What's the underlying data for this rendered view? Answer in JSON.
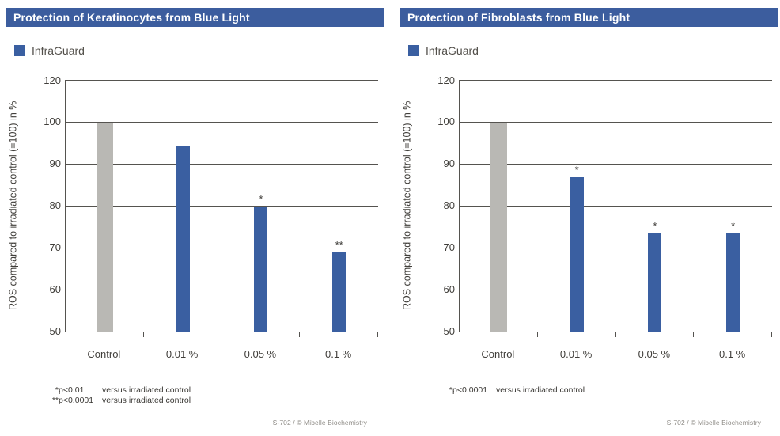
{
  "colors": {
    "page_bg": "#ffffff",
    "title_bg": "#3c5d9e",
    "title_text": "#ffffff",
    "bar_blue": "#3a5fa1",
    "bar_gray": "#b9b8b4",
    "grid": "#55534f",
    "text": "#403e3a",
    "legend_text": "#524f4a",
    "footnote_text": "#3a3834",
    "caption_text": "#8f8c87"
  },
  "chart_data": [
    {
      "type": "bar",
      "title": "Protection of Keratinocytes from Blue Light",
      "legend": [
        {
          "label": "InfraGuard",
          "color": "#3a5fa1"
        }
      ],
      "legend_position": "top-left",
      "ylabel": "ROS compared to irradiated control (=100) in %",
      "xlabel": "",
      "ylim": [
        50,
        120
      ],
      "y_ticks": [
        "120",
        "100",
        "90",
        "80",
        "70",
        "60",
        "50"
      ],
      "axis_note": "y-axis compressed above 100: the 120-to-100 span equals one 10-unit gridline gap",
      "grid": true,
      "categories": [
        "Control",
        "0.01 %",
        "0.05 %",
        "0.1 %"
      ],
      "values": [
        100,
        94.5,
        80,
        69
      ],
      "bar_colors": [
        "#b9b8b4",
        "#3a5fa1",
        "#3a5fa1",
        "#3a5fa1"
      ],
      "significance": [
        "",
        "",
        "*",
        "**"
      ],
      "footnotes": [
        {
          "marker": "*",
          "p": "p<0.01",
          "text": "versus irradiated control"
        },
        {
          "marker": "**",
          "p": "p<0.0001",
          "text": "versus irradiated control"
        }
      ],
      "caption": "S-702 / © Mibelle Biochemistry"
    },
    {
      "type": "bar",
      "title": "Protection of Fibroblasts from Blue Light",
      "legend": [
        {
          "label": "InfraGuard",
          "color": "#3a5fa1"
        }
      ],
      "legend_position": "top-left",
      "ylabel": "ROS compared to irradiated control (=100) in %",
      "xlabel": "",
      "ylim": [
        50,
        120
      ],
      "y_ticks": [
        "120",
        "100",
        "90",
        "80",
        "70",
        "60",
        "50"
      ],
      "axis_note": "y-axis compressed above 100: the 120-to-100 span equals one 10-unit gridline gap",
      "grid": true,
      "categories": [
        "Control",
        "0.01 %",
        "0.05 %",
        "0.1 %"
      ],
      "values": [
        100,
        87,
        73.5,
        73.5
      ],
      "bar_colors": [
        "#b9b8b4",
        "#3a5fa1",
        "#3a5fa1",
        "#3a5fa1"
      ],
      "significance": [
        "",
        "*",
        "*",
        "*"
      ],
      "footnotes": [
        {
          "marker": "*",
          "p": "p<0.0001",
          "text": "versus irradiated control"
        }
      ],
      "caption": "S-702 / © Mibelle Biochemistry"
    }
  ]
}
